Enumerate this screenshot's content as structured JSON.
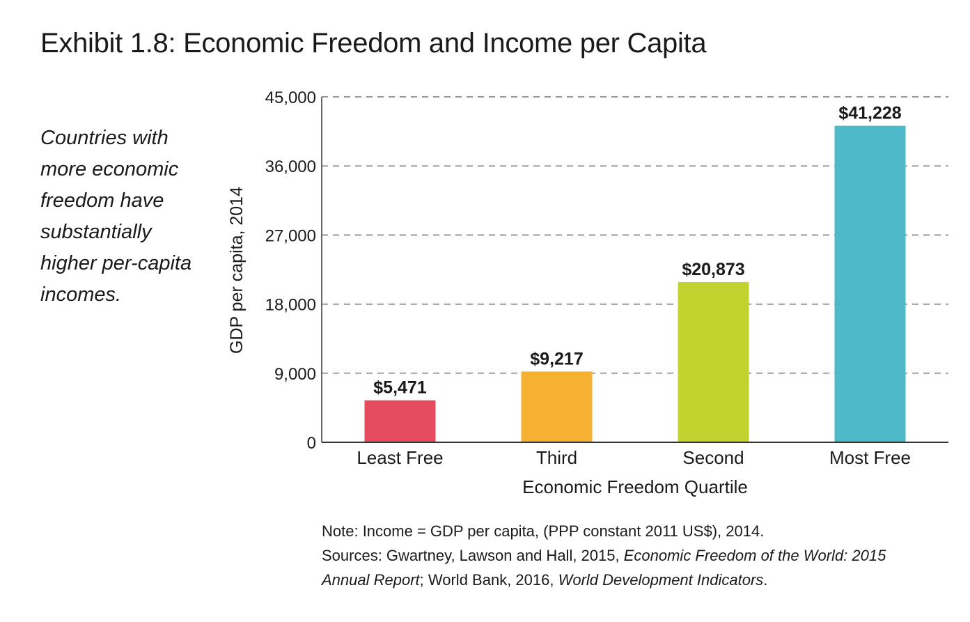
{
  "title": "Exhibit 1.8: Economic Freedom and Income per Capita",
  "callout": {
    "lines": [
      "Countries with",
      "more economic",
      "freedom have",
      "substantially",
      "higher per-capita",
      "incomes."
    ]
  },
  "chart_data": {
    "type": "bar",
    "title": "Exhibit 1.8: Economic Freedom and Income per Capita",
    "categories": [
      "Least Free",
      "Third",
      "Second",
      "Most Free"
    ],
    "values": [
      5471,
      9217,
      20873,
      41228
    ],
    "value_labels": [
      "$5,471",
      "$9,217",
      "$20,873",
      "$41,228"
    ],
    "colors": [
      "#e64c60",
      "#f6b133",
      "#c2d22f",
      "#4eb9c8"
    ],
    "xlabel": "Economic Freedom Quartile",
    "ylabel": "GDP per capita, 2014",
    "ylim": [
      0,
      45000
    ],
    "yticks": [
      0,
      9000,
      18000,
      27000,
      36000,
      45000
    ],
    "ytick_labels": [
      "0",
      "9,000",
      "18,000",
      "27,000",
      "36,000",
      "45,000"
    ],
    "grid": "dashed-horizontal"
  },
  "note": {
    "line1": "Note: Income = GDP per capita, (PPP constant 2011 US$), 2014.",
    "line2_prefix": "Sources: Gwartney, Lawson and Hall, 2015, ",
    "line2_italic": "Economic Freedom of the World: 2015",
    "line3_italic1": "Annual Report",
    "line3_mid": "; World Bank, 2016, ",
    "line3_italic2": "World Development Indicators",
    "line3_end": "."
  }
}
